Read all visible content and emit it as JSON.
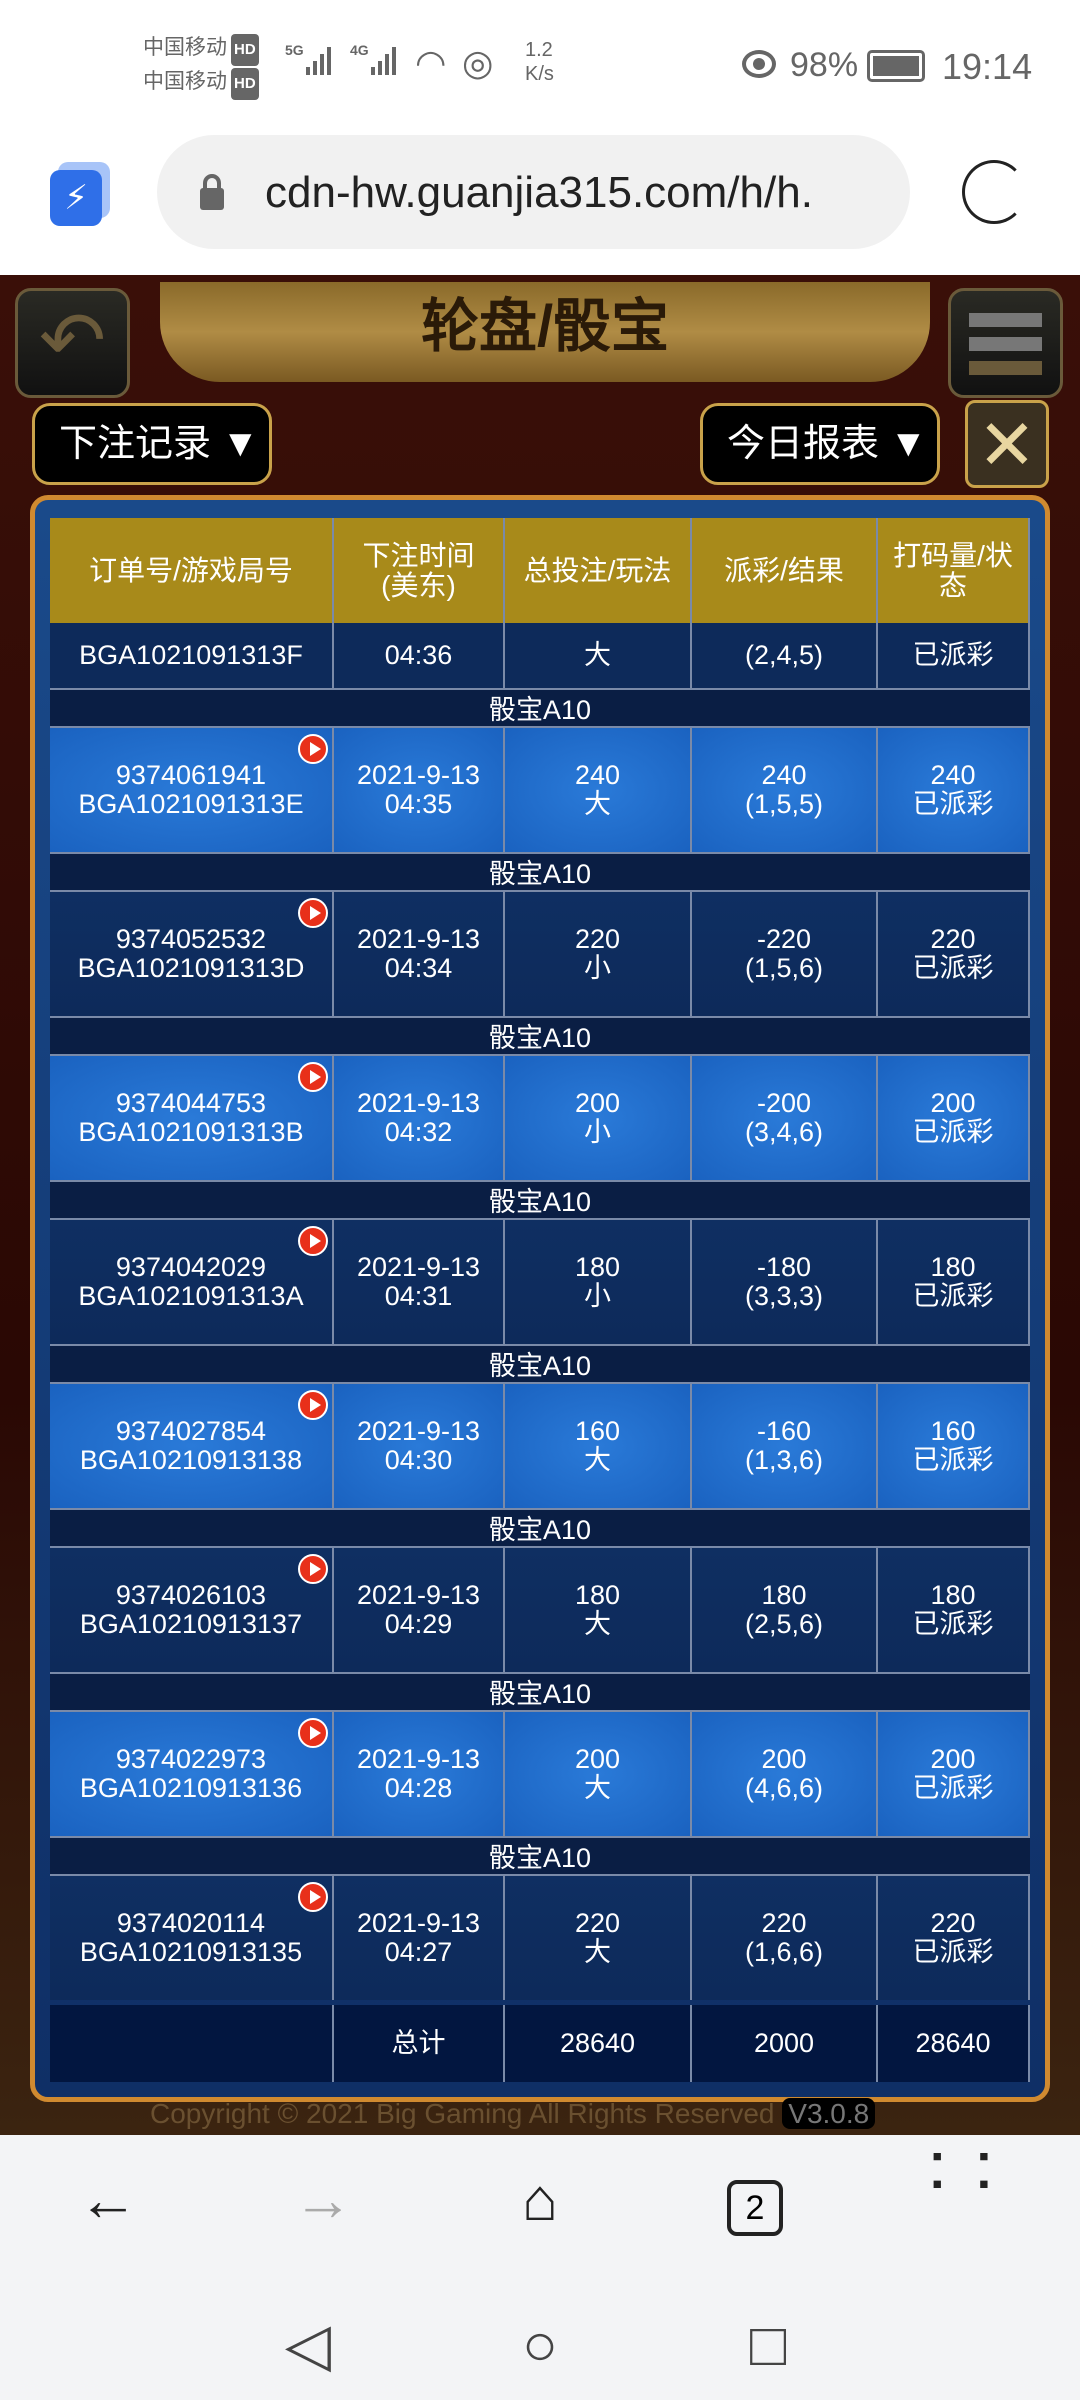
{
  "status": {
    "carrier1": "中国移动",
    "carrier2": "中国移动",
    "hd": "HD",
    "net1": "5G",
    "net2": "4G",
    "speed": "1.2\nK/s",
    "battery": "98%",
    "time": "19:14"
  },
  "browser": {
    "url": "cdn-hw.guanjia315.com/h/h.",
    "tabs_count": "2"
  },
  "game": {
    "title": "轮盘/骰宝",
    "left_dropdown": "下注记录 ▼",
    "right_dropdown": "今日报表 ▼",
    "copyright": "Copyright © 2021 Big Gaming All Rights Reserved",
    "version": "V3.0.8"
  },
  "table": {
    "headers": [
      "订单号/游戏局号",
      "下注时间\n(美东)",
      "总投注/玩法",
      "派彩/结果",
      "打码量/状\n态"
    ],
    "partial_row": [
      "BGA1021091313F",
      "04:36",
      "大",
      "(2,4,5)",
      "已派彩"
    ],
    "rows": [
      {
        "label": "骰宝A10",
        "cells": [
          "9374061941\nBGA1021091313E",
          "2021-9-13\n04:35",
          "240\n大",
          "240\n(1,5,5)",
          "240\n已派彩"
        ]
      },
      {
        "label": "骰宝A10",
        "cells": [
          "9374052532\nBGA1021091313D",
          "2021-9-13\n04:34",
          "220\n小",
          "-220\n(1,5,6)",
          "220\n已派彩"
        ]
      },
      {
        "label": "骰宝A10",
        "cells": [
          "9374044753\nBGA1021091313B",
          "2021-9-13\n04:32",
          "200\n小",
          "-200\n(3,4,6)",
          "200\n已派彩"
        ]
      },
      {
        "label": "骰宝A10",
        "cells": [
          "9374042029\nBGA1021091313A",
          "2021-9-13\n04:31",
          "180\n小",
          "-180\n(3,3,3)",
          "180\n已派彩"
        ]
      },
      {
        "label": "骰宝A10",
        "cells": [
          "9374027854\nBGA10210913138",
          "2021-9-13\n04:30",
          "160\n大",
          "-160\n(1,3,6)",
          "160\n已派彩"
        ]
      },
      {
        "label": "骰宝A10",
        "cells": [
          "9374026103\nBGA10210913137",
          "2021-9-13\n04:29",
          "180\n大",
          "180\n(2,5,6)",
          "180\n已派彩"
        ]
      },
      {
        "label": "骰宝A10",
        "cells": [
          "9374022973\nBGA10210913136",
          "2021-9-13\n04:28",
          "200\n大",
          "200\n(4,6,6)",
          "200\n已派彩"
        ]
      },
      {
        "label": "骰宝A10",
        "cells": [
          "9374020114\nBGA10210913135",
          "2021-9-13\n04:27",
          "220\n大",
          "220\n(1,6,6)",
          "220\n已派彩"
        ]
      }
    ],
    "totals": [
      "",
      "总计",
      "28640",
      "2000",
      "28640"
    ]
  },
  "colors": {
    "header": "#a88a1a",
    "row_light": "#1a62c0",
    "row_dark": "#0d2a5a",
    "frame": "#d08a30"
  }
}
